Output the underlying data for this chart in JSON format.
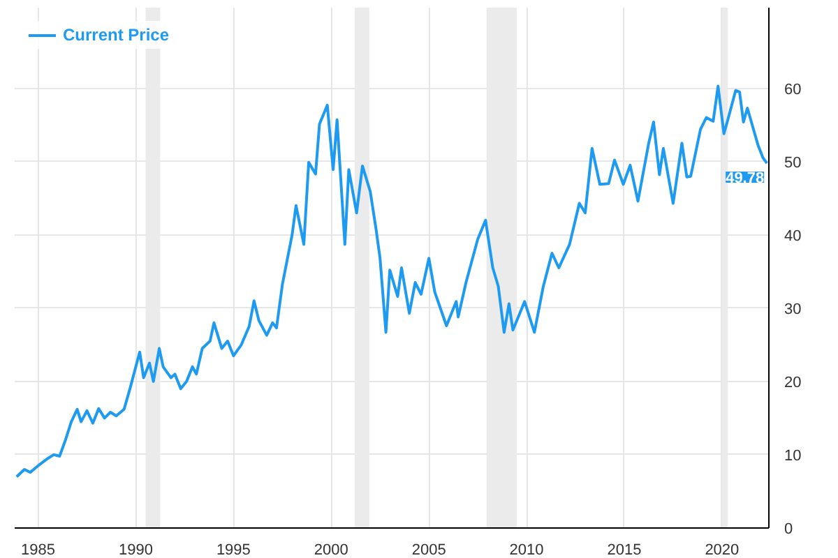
{
  "chart_data": {
    "type": "line",
    "x": [
      1983.9,
      1984.3,
      1984.6,
      1985.0,
      1985.5,
      1985.8,
      1986.1,
      1986.4,
      1986.7,
      1987.0,
      1987.2,
      1987.5,
      1987.8,
      1988.1,
      1988.4,
      1988.7,
      1989.0,
      1989.4,
      1989.7,
      1990.0,
      1990.2,
      1990.4,
      1990.7,
      1990.9,
      1991.2,
      1991.4,
      1991.8,
      1992.0,
      1992.3,
      1992.6,
      1992.9,
      1993.1,
      1993.4,
      1993.8,
      1994.0,
      1994.4,
      1994.7,
      1995.0,
      1995.4,
      1995.8,
      1996.05,
      1996.3,
      1996.7,
      1997.0,
      1997.2,
      1997.5,
      1998.0,
      1998.2,
      1998.6,
      1998.85,
      1999.2,
      1999.4,
      1999.8,
      2000.1,
      2000.3,
      2000.7,
      2000.9,
      2001.3,
      2001.6,
      2002.0,
      2002.3,
      2002.5,
      2002.8,
      2003.0,
      2003.4,
      2003.6,
      2004.0,
      2004.3,
      2004.6,
      2005.0,
      2005.3,
      2005.9,
      2006.4,
      2006.5,
      2006.9,
      2007.5,
      2007.9,
      2008.27,
      2008.55,
      2008.85,
      2009.1,
      2009.3,
      2009.9,
      2010.4,
      2010.85,
      2011.3,
      2011.65,
      2012.2,
      2012.7,
      2013.0,
      2013.35,
      2013.75,
      2014.2,
      2014.5,
      2014.95,
      2015.3,
      2015.7,
      2016.25,
      2016.5,
      2016.8,
      2017.0,
      2017.5,
      2017.95,
      2018.2,
      2018.4,
      2018.9,
      2019.2,
      2019.55,
      2019.8,
      2020.1,
      2020.35,
      2020.7,
      2020.9,
      2021.1,
      2021.3,
      2021.85,
      2022.1,
      2022.3
    ],
    "series": [
      {
        "name": "Current Price",
        "color": "#1e9bf0",
        "values": [
          7,
          8,
          7.6,
          8.5,
          9.5,
          10,
          9.8,
          12,
          14.5,
          16.2,
          14.5,
          16,
          14.3,
          16.3,
          15,
          15.8,
          15.3,
          16.2,
          19,
          22,
          24,
          20.5,
          22.5,
          20,
          24.5,
          22,
          20.5,
          21,
          19,
          20,
          22,
          21,
          24.5,
          25.5,
          28,
          24.5,
          25.5,
          23.5,
          25,
          27.5,
          31,
          28.3,
          26.3,
          28,
          27.3,
          33.2,
          40,
          44,
          38.7,
          49.9,
          48.3,
          55.1,
          57.7,
          48.9,
          55.7,
          38.7,
          48.9,
          43,
          49.4,
          45.9,
          40.7,
          36.8,
          26.7,
          35.2,
          31.6,
          35.5,
          29.3,
          33.5,
          31.9,
          36.8,
          32.2,
          27.6,
          30.9,
          28.8,
          33.5,
          39.4,
          42,
          35.5,
          33,
          26.7,
          30.6,
          27,
          30.9,
          26.7,
          32.9,
          37.5,
          35.5,
          38.7,
          44.3,
          43,
          51.8,
          46.9,
          47,
          50.2,
          46.9,
          49.5,
          44.6,
          52.5,
          55.4,
          48.2,
          51.8,
          44.3,
          52.5,
          47.9,
          48,
          54.4,
          56,
          55.5,
          60.3,
          53.8,
          56.2,
          59.7,
          59.5,
          55.4,
          57.3,
          52.2,
          50.5,
          49.78
        ]
      }
    ],
    "xlim": [
      1983.8,
      2022.4
    ],
    "ylim": [
      0,
      71
    ],
    "xticks": [
      1985,
      1990,
      1995,
      2000,
      2005,
      2010,
      2015,
      2020
    ],
    "yticks": [
      0,
      10,
      20,
      30,
      40,
      50,
      60
    ],
    "bands": [
      {
        "axis": "x",
        "from": 1990.5,
        "to": 1991.25,
        "color": "#ebebeb"
      },
      {
        "axis": "x",
        "from": 2001.2,
        "to": 2001.95,
        "color": "#ebebeb"
      },
      {
        "axis": "x",
        "from": 2007.95,
        "to": 2009.5,
        "color": "#ebebeb"
      },
      {
        "axis": "x",
        "from": 2020.0,
        "to": 2020.3,
        "color": "#ebebeb"
      }
    ],
    "annotations": [
      {
        "text": "49.78",
        "x": 2022.3,
        "y": 49.78
      }
    ],
    "grid": true,
    "legend": "top left",
    "marker": "none",
    "line_style": "solid"
  }
}
